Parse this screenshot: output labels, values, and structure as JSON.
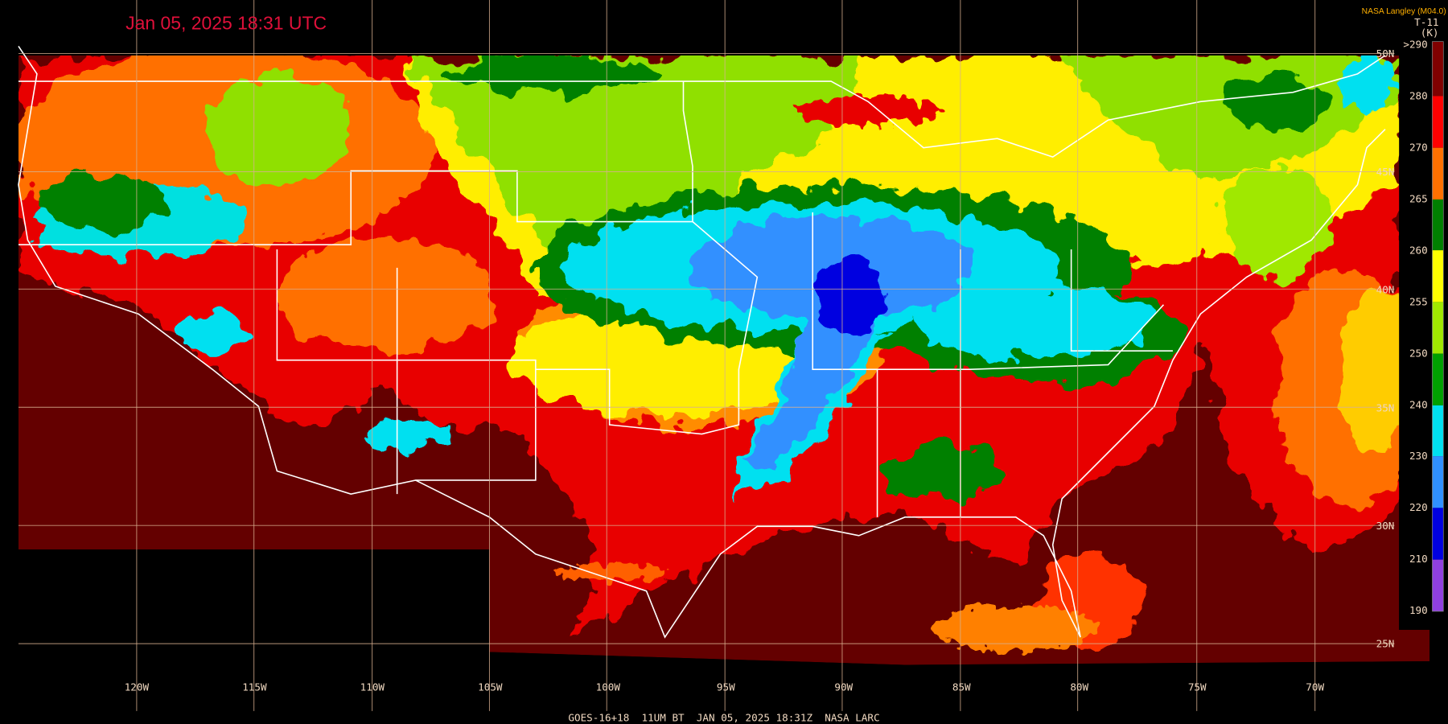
{
  "header": {
    "title": "Jan 05, 2025 18:31 UTC",
    "credit": "NASA Langley (M04.0)"
  },
  "colorbar": {
    "product": "T-11",
    "unit": "(K)",
    "labels": [
      ">290",
      "280",
      "270",
      "265",
      "260",
      "255",
      "250",
      "240",
      "230",
      "220",
      "210",
      "190"
    ]
  },
  "longitude_labels": [
    "120W",
    "115W",
    "110W",
    "105W",
    "100W",
    "95W",
    "90W",
    "85W",
    "80W",
    "75W",
    "70W"
  ],
  "latitude_labels": [
    "50N",
    "45N",
    "40N",
    "35N",
    "30N",
    "25N"
  ],
  "footer": "GOES-16+18  11UM BT  JAN 05, 2025 18:31Z  NASA LARC"
}
